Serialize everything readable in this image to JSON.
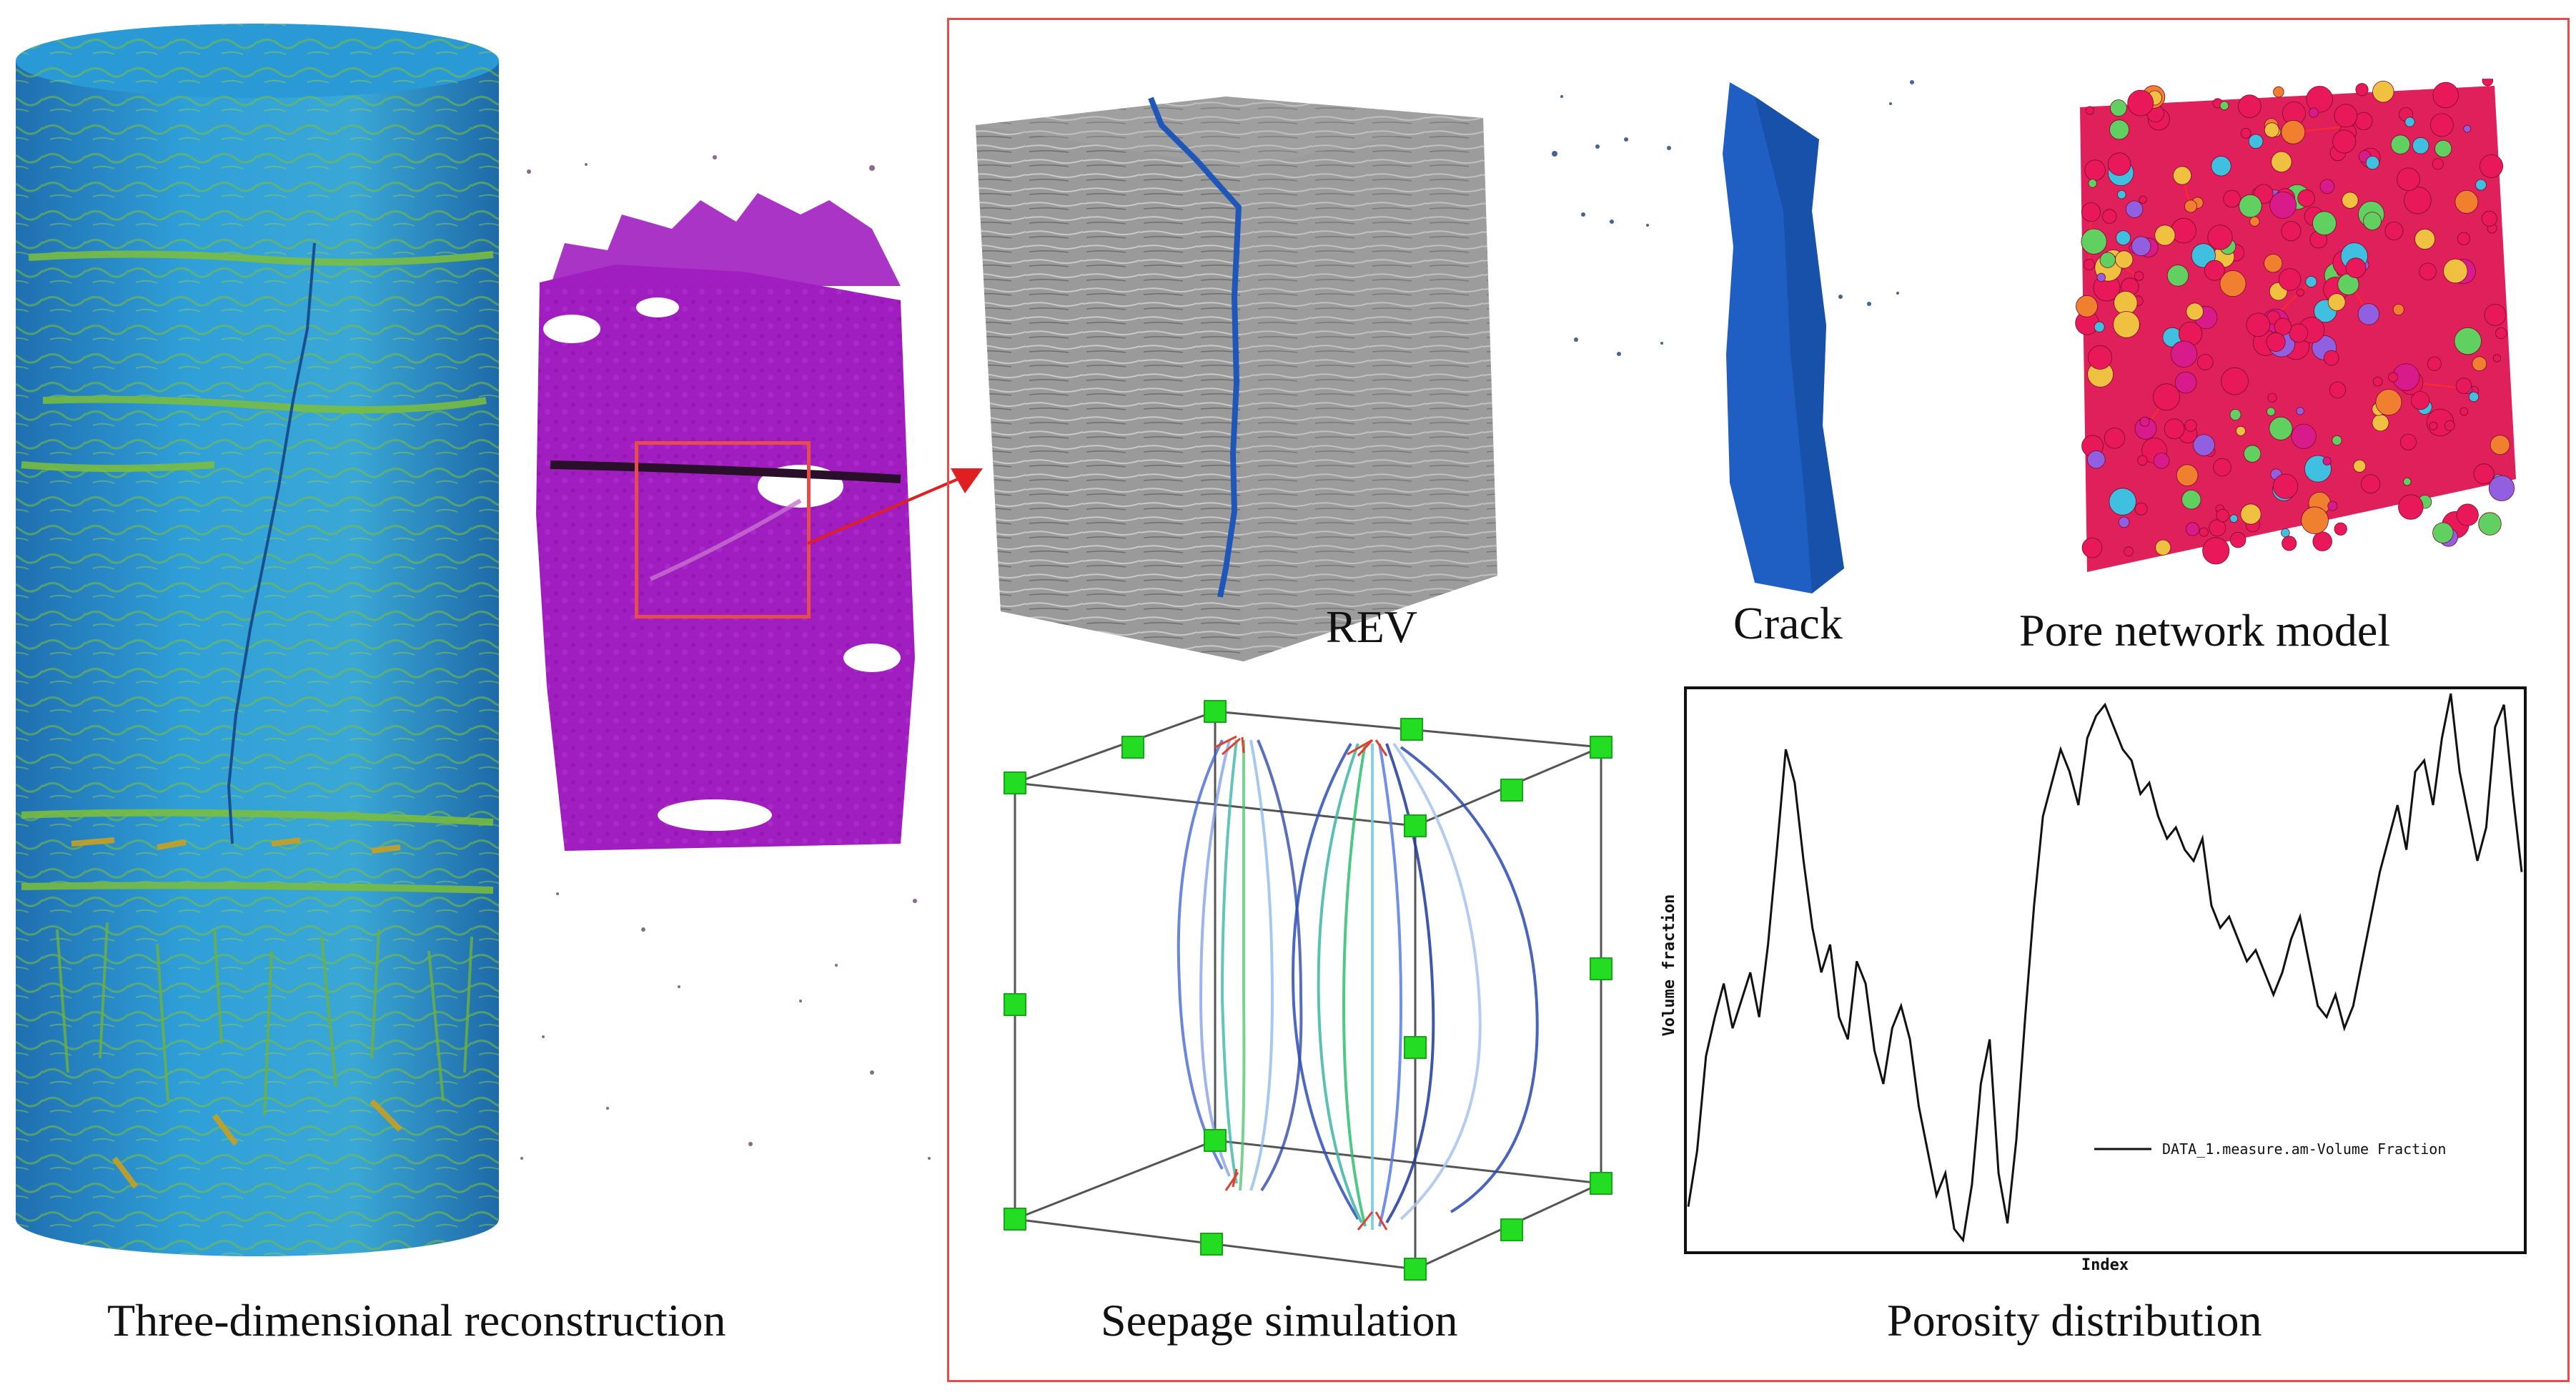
{
  "captions": {
    "reconstruction": "Three-dimensional reconstruction",
    "rev": "REV",
    "crack": "Crack",
    "pore_network": "Pore network model",
    "seepage": "Seepage simulation",
    "porosity": "Porosity distribution"
  },
  "colors": {
    "frame": "#e74c4c",
    "cylinder_base": "#2a8fd6",
    "cylinder_fracture": "#7cbf3a",
    "purple_volume": "#a01ec0",
    "crack_blue": "#1f5fc4",
    "pore_pink": "#e8185a",
    "seepage_node": "#22dd22"
  },
  "icons": {
    "arrow": "red-arrow-icon"
  },
  "chart_data": {
    "type": "line",
    "title": "",
    "xlabel": "Index",
    "ylabel": "Volume fraction",
    "legend": {
      "placement": "bottom-right",
      "entries": [
        "DATA_1.measure.am-Volume Fraction"
      ]
    },
    "grid": false,
    "ylim": [
      0,
      1
    ],
    "series": [
      {
        "name": "DATA_1.measure.am-Volume Fraction",
        "values": [
          0.08,
          0.18,
          0.35,
          0.42,
          0.48,
          0.4,
          0.45,
          0.5,
          0.42,
          0.55,
          0.72,
          0.9,
          0.84,
          0.7,
          0.58,
          0.5,
          0.55,
          0.42,
          0.38,
          0.52,
          0.48,
          0.36,
          0.3,
          0.4,
          0.44,
          0.38,
          0.26,
          0.18,
          0.1,
          0.14,
          0.04,
          0.02,
          0.12,
          0.3,
          0.38,
          0.14,
          0.05,
          0.2,
          0.42,
          0.62,
          0.78,
          0.84,
          0.9,
          0.86,
          0.8,
          0.92,
          0.96,
          0.98,
          0.94,
          0.9,
          0.88,
          0.82,
          0.84,
          0.78,
          0.74,
          0.76,
          0.72,
          0.7,
          0.74,
          0.62,
          0.58,
          0.6,
          0.56,
          0.52,
          0.54,
          0.5,
          0.46,
          0.5,
          0.56,
          0.6,
          0.52,
          0.44,
          0.42,
          0.46,
          0.4,
          0.44,
          0.52,
          0.6,
          0.68,
          0.74,
          0.8,
          0.72,
          0.86,
          0.88,
          0.8,
          0.92,
          1.0,
          0.86,
          0.78,
          0.7,
          0.76,
          0.94,
          0.98,
          0.82,
          0.68
        ]
      }
    ]
  }
}
